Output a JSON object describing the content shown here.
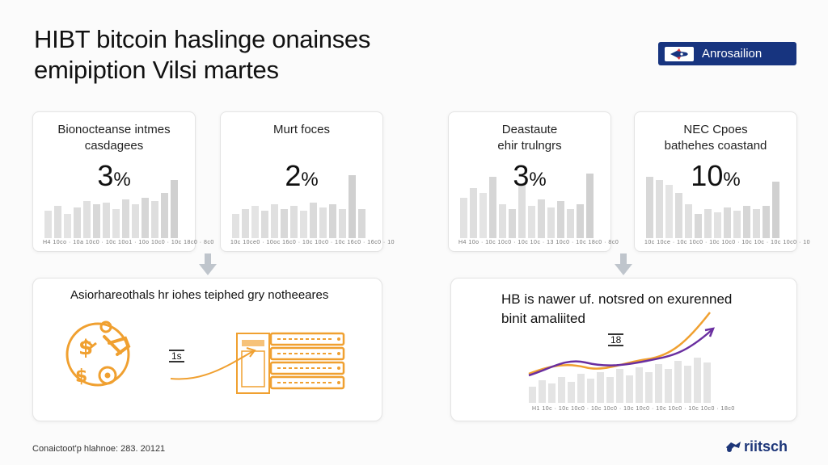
{
  "header": {
    "title_line1": "HIBT bitcoin haslinge onainses",
    "title_line2": "emipiption Vilsi martes",
    "badge_label": "Anrosailion"
  },
  "cards": [
    {
      "label_line1": "Bionocteanse intmes",
      "label_line2": "casdagees",
      "value": "3",
      "unit": "%",
      "ticks": "H4 10co · 10a 10c0 · 10c 10o1 · 10o 10c0 · 10c 18c0 · 8c0"
    },
    {
      "label_line1": "Murt foces",
      "label_line2": "",
      "value": "2",
      "unit": "%",
      "ticks": "10c 10ce0 · 10oc 16c0 · 10c 10c0 · 10c 16c0 · 16c0 · 10"
    },
    {
      "label_line1": "Deastaute",
      "label_line2": "ehir trulngrs",
      "value": "3",
      "unit": "%",
      "ticks": "H4 10o · 10c 10c0 · 10c 10c · 13 10c0 · 10c 18c0 · 8c0"
    },
    {
      "label_line1": "NEC Cpoes",
      "label_line2": "bathehes coastand",
      "value": "10",
      "unit": "%",
      "ticks": "10c 10ce · 10c 10c0 · 10c 10c0 · 10c 10c · 10c 10c0 · 10"
    }
  ],
  "panel_left": {
    "title": "Asiorhareothals hr iohes teiphed gry notheeares",
    "tag": "1s"
  },
  "panel_right": {
    "title_line1": "HB is nawer uf. notsred on exurenned",
    "title_line2": "binit amaliited",
    "tag": "18",
    "ticks": "H1 10c · 10c 10c0 · 10c 10c0 · 10c 10c0 · 10c 10c0 · 10c 10c0 · 18c0"
  },
  "footer": {
    "left_text": "Conaictoot'p hlahnoe: 283. 20121",
    "brand": "riitsch"
  },
  "colors": {
    "navy": "#17347f",
    "orange": "#f0a030",
    "purple": "#6a2fa0",
    "bar_gray": "#dcdcdc"
  }
}
